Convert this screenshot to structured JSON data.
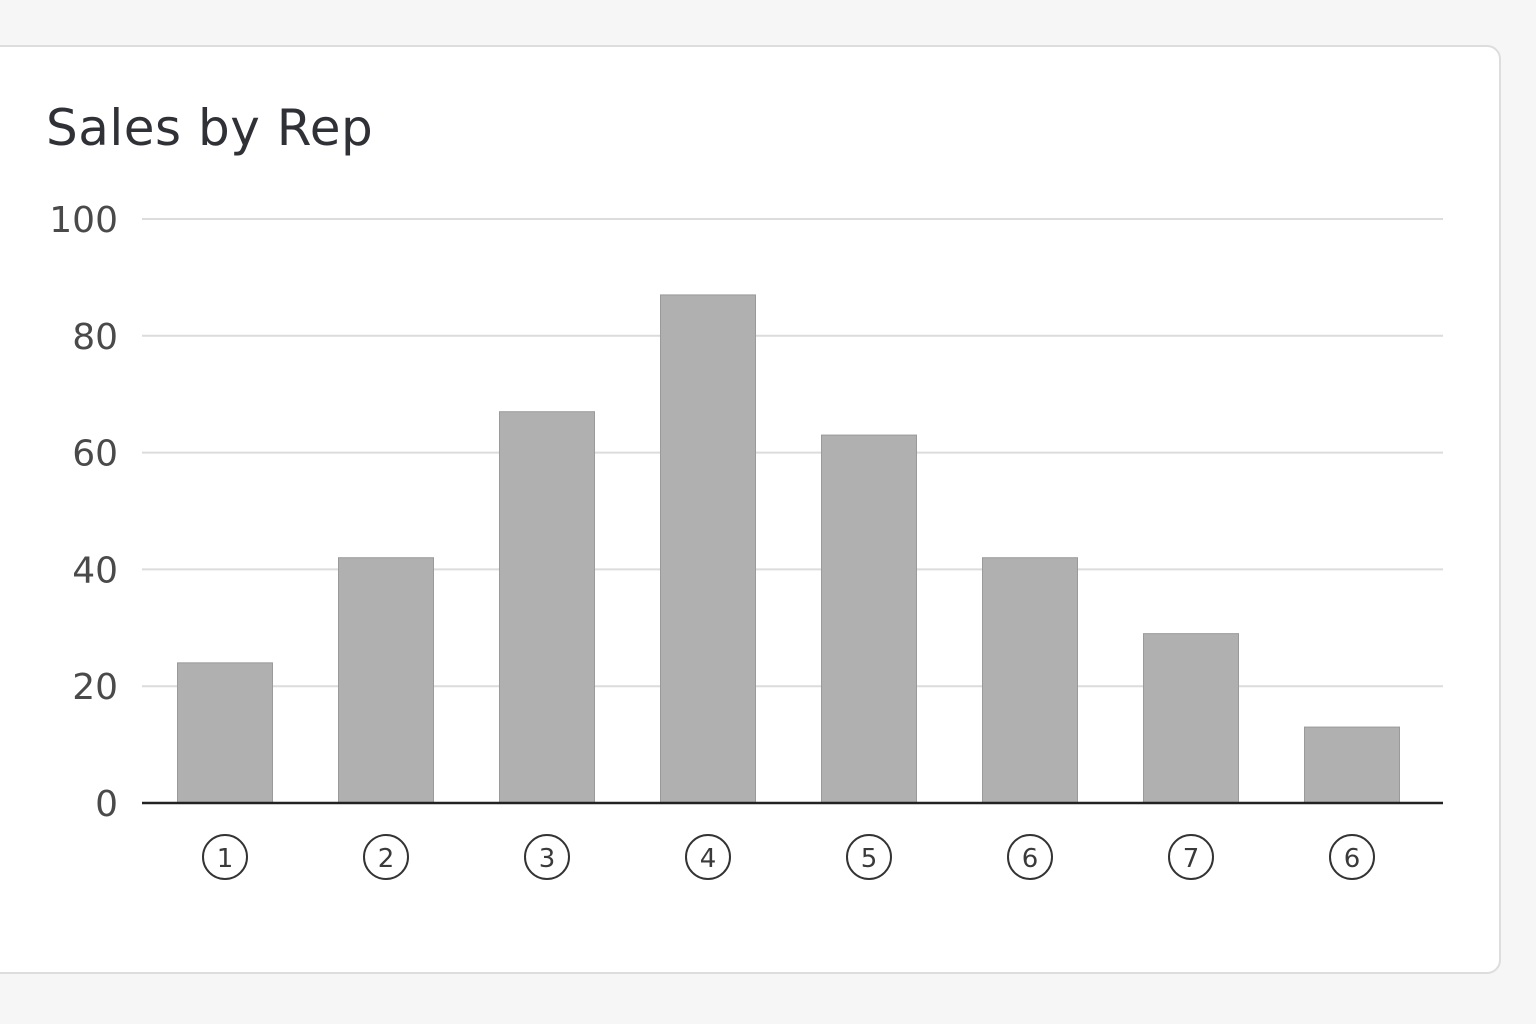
{
  "chart_data": {
    "type": "bar",
    "title": "Sales by Rep",
    "xlabel": "",
    "ylabel": "",
    "categories": [
      "1",
      "2",
      "3",
      "4",
      "5",
      "6",
      "7",
      "6"
    ],
    "values": [
      24,
      42,
      67,
      87,
      63,
      42,
      29,
      13
    ],
    "ylim": [
      0,
      100
    ],
    "yticks": [
      0,
      20,
      40,
      60,
      80,
      100
    ],
    "grid": true,
    "legend": "none",
    "colors": {
      "bar": "#b0b0b0",
      "bar_edge": "#9a9a9a",
      "grid": "#dcdcdc",
      "axis": "#222222",
      "label_circle": "#333333"
    }
  }
}
